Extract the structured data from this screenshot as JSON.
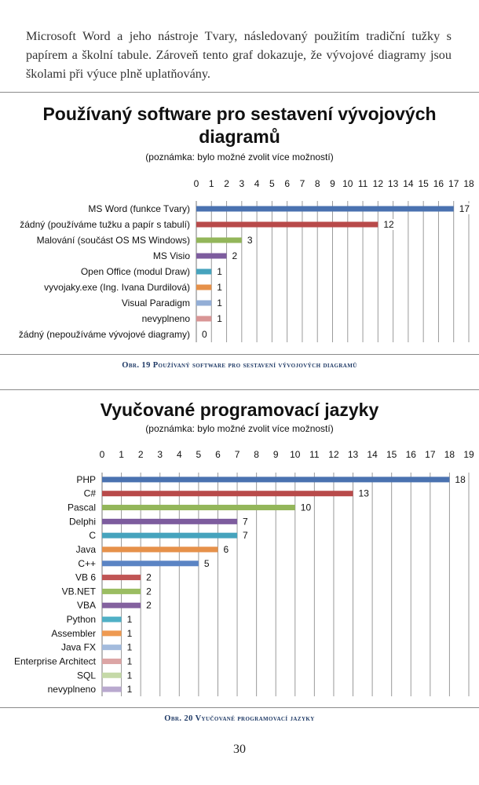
{
  "paragraph": "Microsoft Word a jeho nástroje Tvary, následovaný použitím tradiční tužky s papírem a školní tabule. Zároveň tento graf dokazuje, že vývojové diagramy jsou školami při výuce plně uplatňovány.",
  "figure1": {
    "caption": "Obr. 19 Používaný software pro sestavení vývojových diagramů"
  },
  "figure2": {
    "caption": "Obr. 20 Vyučované programovací jazyky"
  },
  "page_number": "30",
  "chart_data": [
    {
      "type": "bar",
      "orientation": "horizontal",
      "title_line1": "Používaný software pro sestavení vývojových",
      "title_line2": "diagramů",
      "note": "(poznámka: bylo možné zvolit více možností)",
      "xlim": [
        0,
        18
      ],
      "ticks": [
        "0",
        "1",
        "2",
        "3",
        "4",
        "5",
        "6",
        "7",
        "8",
        "9",
        "10",
        "11",
        "12",
        "13",
        "14",
        "15",
        "16",
        "17",
        "18"
      ],
      "grid": true,
      "categories": [
        "MS Word (funkce Tvary)",
        "žádný (používáme tužku a papír s tabulí)",
        "Malování (součást OS MS Windows)",
        "MS Visio",
        "Open Office (modul Draw)",
        "vyvojaky.exe (Ing. Ivana Durdilová)",
        "Visual Paradigm",
        "nevyplneno",
        "žádný (nepoužíváme vývojové diagramy)"
      ],
      "values": [
        17,
        12,
        3,
        2,
        1,
        1,
        1,
        1,
        0
      ],
      "colors": [
        "#4a72b0",
        "#b84a4a",
        "#93b65a",
        "#7d5c9e",
        "#46a3bd",
        "#e6914a",
        "#93aed6",
        "#d99595",
        "#b9cf96"
      ]
    },
    {
      "type": "bar",
      "orientation": "horizontal",
      "title": "Vyučované programovací jazyky",
      "note": "(poznámka: bylo možné zvolit více možností)",
      "xlim": [
        0,
        19
      ],
      "ticks": [
        "0",
        "1",
        "2",
        "3",
        "4",
        "5",
        "6",
        "7",
        "8",
        "9",
        "10",
        "11",
        "12",
        "13",
        "14",
        "15",
        "16",
        "17",
        "18",
        "19"
      ],
      "grid": true,
      "categories": [
        "PHP",
        "C#",
        "Pascal",
        "Delphi",
        "C",
        "Java",
        "C++",
        "VB 6",
        "VB.NET",
        "VBA",
        "Python",
        "Assembler",
        "Java FX",
        "Enterprise Architect",
        "SQL",
        "nevyplneno"
      ],
      "values": [
        18,
        13,
        10,
        7,
        7,
        6,
        5,
        2,
        2,
        2,
        1,
        1,
        1,
        1,
        1,
        1
      ],
      "colors": [
        "#4a72b0",
        "#b84a4a",
        "#93b65a",
        "#7d5c9e",
        "#46a3bd",
        "#e6914a",
        "#5b84c4",
        "#c05555",
        "#9bbd62",
        "#84629f",
        "#4fb0c6",
        "#ee9a52",
        "#a3bbdd",
        "#dca5a5",
        "#c5d9a8",
        "#b9a9cf"
      ]
    }
  ]
}
